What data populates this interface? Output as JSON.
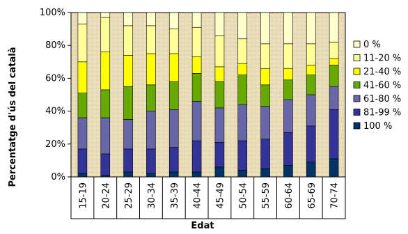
{
  "chart_data": {
    "type": "bar",
    "stacked": true,
    "title": "",
    "xlabel": "Edat",
    "ylabel": "Percentatge d'ús del català",
    "ylim": [
      0,
      100
    ],
    "yticks": [
      "0%",
      "20%",
      "40%",
      "60%",
      "80%",
      "100%"
    ],
    "grid": false,
    "legend_position": "right",
    "categories": [
      "15-19",
      "20-24",
      "25-29",
      "30-34",
      "35-39",
      "40-44",
      "45-49",
      "50-54",
      "55-59",
      "60-64",
      "65-69",
      "70-74"
    ],
    "series": [
      {
        "name": "100 %",
        "color": "#003366",
        "values": [
          2,
          1,
          3,
          2,
          3,
          3,
          6,
          4,
          5,
          7,
          9,
          11
        ]
      },
      {
        "name": "81-99 %",
        "color": "#333399",
        "values": [
          15,
          13,
          14,
          15,
          15,
          19,
          15,
          18,
          18,
          20,
          22,
          30
        ]
      },
      {
        "name": "61-80 %",
        "color": "#6666a8",
        "values": [
          19,
          22,
          18,
          23,
          23,
          24,
          21,
          22,
          20,
          20,
          19,
          14
        ]
      },
      {
        "name": "41-60 %",
        "color": "#66aa00",
        "values": [
          15,
          17,
          20,
          16,
          17,
          17,
          16,
          18,
          13,
          12,
          12,
          13
        ]
      },
      {
        "name": "21-40 %",
        "color": "#ffff00",
        "values": [
          19,
          23,
          19,
          19,
          17,
          10,
          9,
          7,
          10,
          7,
          6,
          4
        ]
      },
      {
        "name": "11-20 %",
        "color": "#ffff99",
        "values": [
          23,
          21,
          18,
          17,
          15,
          18,
          19,
          15,
          15,
          15,
          13,
          10
        ]
      },
      {
        "name": "0 %",
        "color": "#ffffcc",
        "values": [
          7,
          3,
          8,
          8,
          10,
          9,
          14,
          16,
          19,
          19,
          19,
          18
        ]
      }
    ]
  }
}
